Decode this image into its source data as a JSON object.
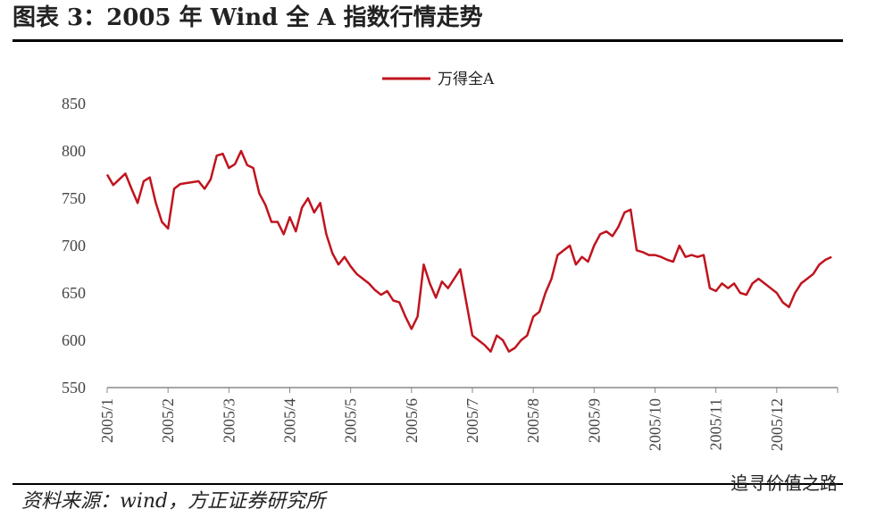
{
  "chart_data": {
    "type": "line",
    "title": "图表 3：2005 年 Wind 全 A 指数行情走势",
    "source": "资料来源：wind，方正证券研究所",
    "watermark": "追寻价值之路",
    "categories": [
      "2005/1",
      null,
      null,
      null,
      null,
      null,
      null,
      null,
      null,
      null,
      "2005/2",
      null,
      null,
      null,
      null,
      null,
      null,
      null,
      null,
      null,
      "2005/3",
      null,
      null,
      null,
      null,
      null,
      null,
      null,
      null,
      null,
      "2005/4",
      null,
      null,
      null,
      null,
      null,
      null,
      null,
      null,
      null,
      "2005/5",
      null,
      null,
      null,
      null,
      null,
      null,
      null,
      null,
      null,
      "2005/6",
      null,
      null,
      null,
      null,
      null,
      null,
      null,
      null,
      null,
      "2005/7",
      null,
      null,
      null,
      null,
      null,
      null,
      null,
      null,
      null,
      "2005/8",
      null,
      null,
      null,
      null,
      null,
      null,
      null,
      null,
      null,
      "2005/9",
      null,
      null,
      null,
      null,
      null,
      null,
      null,
      null,
      null,
      "2005/10",
      null,
      null,
      null,
      null,
      null,
      null,
      null,
      null,
      null,
      "2005/11",
      null,
      null,
      null,
      null,
      null,
      null,
      null,
      null,
      null,
      "2005/12",
      null,
      null,
      null,
      null,
      null,
      null,
      null,
      null,
      null
    ],
    "series": [
      {
        "name": "万得全A",
        "color": "#c0141e",
        "values": [
          775,
          764,
          770,
          776,
          760,
          745,
          768,
          772,
          745,
          725,
          718,
          760,
          765,
          766,
          767,
          768,
          760,
          770,
          795,
          797,
          782,
          786,
          800,
          785,
          782,
          755,
          743,
          725,
          725,
          712,
          730,
          715,
          740,
          750,
          735,
          745,
          712,
          692,
          680,
          688,
          678,
          670,
          665,
          660,
          653,
          648,
          652,
          642,
          640,
          625,
          612,
          625,
          680,
          660,
          645,
          662,
          655,
          665,
          675,
          640,
          605,
          600,
          595,
          588,
          605,
          600,
          588,
          592,
          600,
          605,
          625,
          630,
          650,
          665,
          690,
          695,
          700,
          680,
          688,
          683,
          700,
          712,
          715,
          710,
          720,
          735,
          738,
          695,
          693,
          690,
          690,
          688,
          685,
          683,
          700,
          688,
          690,
          688,
          690,
          655,
          652,
          660,
          655,
          660,
          650,
          648,
          660,
          665,
          660,
          655,
          650,
          640,
          635,
          650,
          660,
          665,
          670,
          680,
          685,
          688
        ]
      }
    ],
    "ylim": [
      550,
      850
    ],
    "yticks": [
      550,
      600,
      650,
      700,
      750,
      800,
      850
    ],
    "legend": "top"
  }
}
